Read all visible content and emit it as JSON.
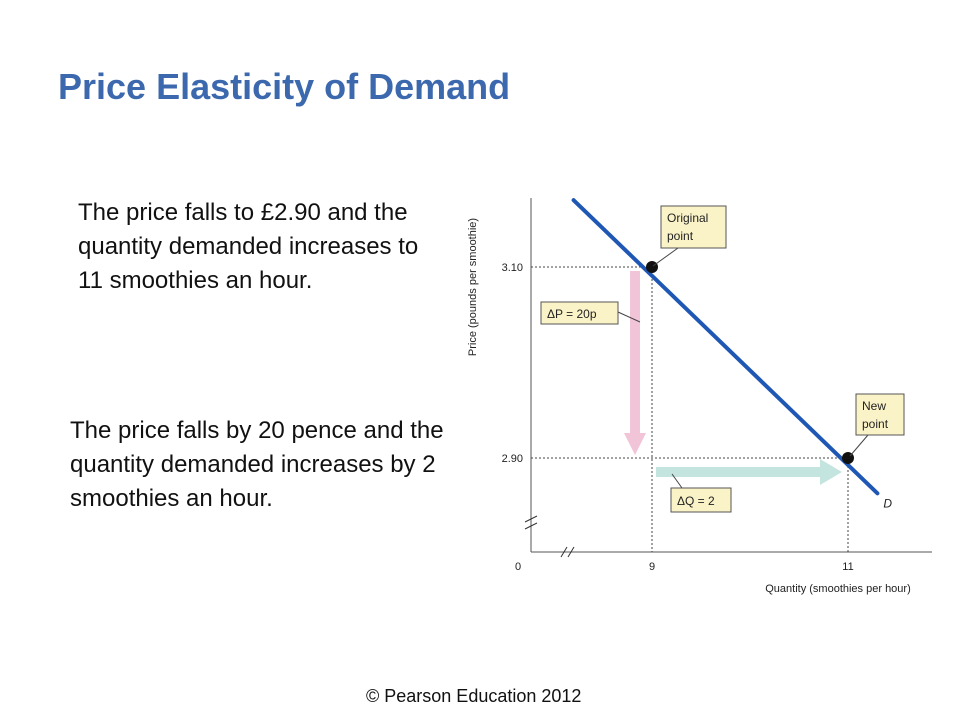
{
  "slide": {
    "title": "Price Elasticity of Demand",
    "paragraph1": "The price falls to £2.90 and the quantity demanded increases to 11 smoothies an hour.",
    "paragraph2": "The price falls by 20 pence and the quantity demanded increases by 2 smoothies an hour.",
    "copyright": "© Pearson Education 2012"
  },
  "colors": {
    "title": "#3c68ad",
    "demand_line": "#1f57b4",
    "price_arrow": "#f2c4d8",
    "quantity_arrow": "#c4e4df",
    "label_box": "#fbf3c8"
  },
  "chart_data": {
    "type": "line",
    "xlabel": "Quantity (smoothies per hour)",
    "ylabel": "Price (pounds per smoothie)",
    "x_ticks": [
      "0",
      "9",
      "11"
    ],
    "y_ticks": [
      "3.10",
      "2.90"
    ],
    "axis_breaks": true,
    "series": [
      {
        "name": "D",
        "x": [
          8.2,
          11.3
        ],
        "y": [
          3.17,
          2.863
        ]
      }
    ],
    "points": [
      {
        "label": "Original point",
        "x": 9,
        "y": 3.1
      },
      {
        "label": "New point",
        "x": 11,
        "y": 2.9
      }
    ],
    "annotations": {
      "price_change": "ΔP = 20p",
      "quantity_change": "ΔQ = 2"
    }
  }
}
